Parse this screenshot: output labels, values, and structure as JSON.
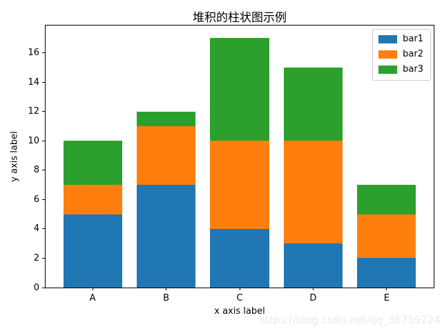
{
  "watermark": "https://blog.csdn.net/qq_36759224",
  "chart_data": {
    "type": "bar",
    "stacked": true,
    "title": "堆积的柱状图示例",
    "xlabel": "x axis label",
    "ylabel": "y axis label",
    "categories": [
      "A",
      "B",
      "C",
      "D",
      "E"
    ],
    "series": [
      {
        "name": "bar1",
        "color": "#1f77b4",
        "values": [
          5,
          7,
          4,
          3,
          2
        ]
      },
      {
        "name": "bar2",
        "color": "#ff7f0e",
        "values": [
          2,
          4,
          6,
          7,
          3
        ]
      },
      {
        "name": "bar3",
        "color": "#2ca02c",
        "values": [
          3,
          1,
          7,
          5,
          2
        ]
      }
    ],
    "totals": [
      10,
      12,
      17,
      15,
      7
    ],
    "yticks": [
      0,
      2,
      4,
      6,
      8,
      10,
      12,
      14,
      16
    ],
    "ylim": [
      0,
      17.85
    ],
    "xlim": [
      -0.64,
      4.64
    ],
    "bar_width": 0.8,
    "grid": false,
    "legend_position": "upper right",
    "spine_color": "#000000",
    "legend_border_color": "#cccccc"
  }
}
